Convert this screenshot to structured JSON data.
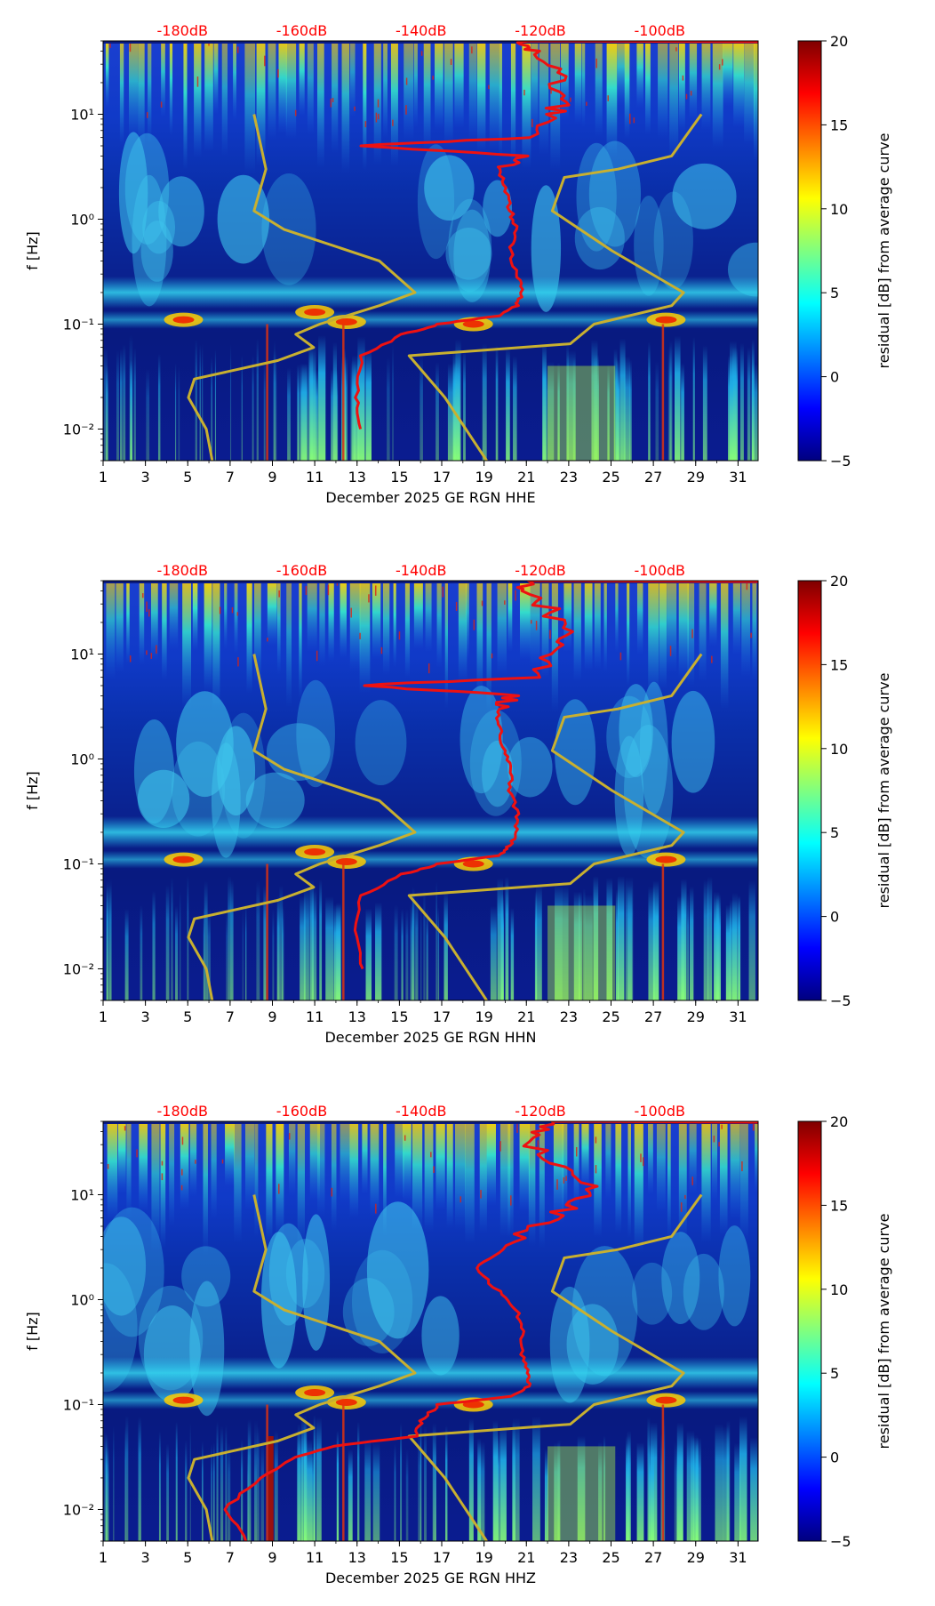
{
  "chart_data": [
    {
      "type": "heatmap",
      "channel": "HHE",
      "xlabel": "December 2025 GE RGN  HHE",
      "ylabel": "f [Hz]",
      "x_ticks": [
        "1",
        "3",
        "5",
        "7",
        "9",
        "11",
        "13",
        "15",
        "17",
        "19",
        "21",
        "23",
        "25",
        "27",
        "29",
        "31"
      ],
      "y_ticks": [
        "10⁻²",
        "10⁻¹",
        "10⁰",
        "10¹"
      ],
      "db_ticks": [
        "-180dB",
        "-160dB",
        "-140dB",
        "-120dB",
        "-100dB"
      ],
      "colorbar_label": "residual [dB] from average curve",
      "colorbar_ticks": [
        "20",
        "15",
        "10",
        "5",
        "0",
        "−5"
      ],
      "red_curve": [
        [
          5.0,
          -150
        ],
        [
          0.01,
          -150
        ],
        [
          0.02,
          -151
        ],
        [
          0.05,
          -150
        ],
        [
          0.08,
          -143
        ],
        [
          0.1,
          -137
        ],
        [
          0.12,
          -127
        ],
        [
          0.15,
          -124
        ],
        [
          0.2,
          -123
        ],
        [
          0.3,
          -124
        ],
        [
          0.5,
          -125
        ],
        [
          0.8,
          -124
        ],
        [
          1.2,
          -125
        ],
        [
          2.0,
          -126
        ],
        [
          3.0,
          -127
        ],
        [
          4.0,
          -124
        ],
        [
          6.0,
          -121
        ],
        [
          10.0,
          -118
        ],
        [
          15.0,
          -116
        ],
        [
          25.0,
          -118
        ],
        [
          40.0,
          -121
        ],
        [
          50.0,
          -122
        ]
      ],
      "yellow_curve_nlnm": [
        [
          0.005,
          -175
        ],
        [
          0.01,
          -176
        ],
        [
          0.02,
          -179
        ],
        [
          0.03,
          -178
        ],
        [
          0.045,
          -164
        ],
        [
          0.06,
          -158
        ],
        [
          0.08,
          -161
        ],
        [
          0.1,
          -157
        ],
        [
          0.15,
          -147
        ],
        [
          0.2,
          -141
        ],
        [
          0.4,
          -147
        ],
        [
          0.8,
          -163
        ],
        [
          1.2,
          -168
        ],
        [
          3.0,
          -166
        ],
        [
          10.0,
          -168
        ]
      ],
      "yellow_curve_nhnm": [
        [
          0.005,
          -129
        ],
        [
          0.02,
          -136
        ],
        [
          0.05,
          -142
        ],
        [
          0.065,
          -115
        ],
        [
          0.1,
          -111
        ],
        [
          0.15,
          -98
        ],
        [
          0.2,
          -96
        ],
        [
          0.5,
          -108
        ],
        [
          1.2,
          -118
        ],
        [
          2.5,
          -116
        ],
        [
          3.0,
          -107
        ],
        [
          4.0,
          -98
        ],
        [
          10.0,
          -93
        ]
      ]
    },
    {
      "type": "heatmap",
      "channel": "HHN",
      "xlabel": "December 2025 GE RGN  HHN",
      "ylabel": "f [Hz]",
      "x_ticks": [
        "1",
        "3",
        "5",
        "7",
        "9",
        "11",
        "13",
        "15",
        "17",
        "19",
        "21",
        "23",
        "25",
        "27",
        "29",
        "31"
      ],
      "y_ticks": [
        "10⁻²",
        "10⁻¹",
        "10⁰",
        "10¹"
      ],
      "db_ticks": [
        "-180dB",
        "-160dB",
        "-140dB",
        "-120dB",
        "-100dB"
      ],
      "colorbar_label": "residual [dB] from average curve",
      "colorbar_ticks": [
        "20",
        "15",
        "10",
        "5",
        "0",
        "−5"
      ],
      "red_curve": [
        [
          5.0,
          -150
        ],
        [
          0.01,
          -150
        ],
        [
          0.02,
          -151
        ],
        [
          0.05,
          -150
        ],
        [
          0.08,
          -143
        ],
        [
          0.1,
          -137
        ],
        [
          0.12,
          -127
        ],
        [
          0.15,
          -125
        ],
        [
          0.2,
          -124
        ],
        [
          0.3,
          -124
        ],
        [
          0.5,
          -125
        ],
        [
          0.8,
          -125
        ],
        [
          1.2,
          -126
        ],
        [
          2.0,
          -127
        ],
        [
          3.0,
          -127
        ],
        [
          4.0,
          -124
        ],
        [
          6.0,
          -121
        ],
        [
          10.0,
          -118
        ],
        [
          15.0,
          -116
        ],
        [
          25.0,
          -118
        ],
        [
          40.0,
          -122
        ],
        [
          50.0,
          -122
        ]
      ],
      "yellow_curve_nlnm": [
        [
          0.005,
          -175
        ],
        [
          0.01,
          -176
        ],
        [
          0.02,
          -179
        ],
        [
          0.03,
          -178
        ],
        [
          0.045,
          -164
        ],
        [
          0.06,
          -158
        ],
        [
          0.08,
          -161
        ],
        [
          0.1,
          -157
        ],
        [
          0.15,
          -147
        ],
        [
          0.2,
          -141
        ],
        [
          0.4,
          -147
        ],
        [
          0.8,
          -163
        ],
        [
          1.2,
          -168
        ],
        [
          3.0,
          -166
        ],
        [
          10.0,
          -168
        ]
      ],
      "yellow_curve_nhnm": [
        [
          0.005,
          -129
        ],
        [
          0.02,
          -136
        ],
        [
          0.05,
          -142
        ],
        [
          0.065,
          -115
        ],
        [
          0.1,
          -111
        ],
        [
          0.15,
          -98
        ],
        [
          0.2,
          -96
        ],
        [
          0.5,
          -108
        ],
        [
          1.2,
          -118
        ],
        [
          2.5,
          -116
        ],
        [
          3.0,
          -107
        ],
        [
          4.0,
          -98
        ],
        [
          10.0,
          -93
        ]
      ]
    },
    {
      "type": "heatmap",
      "channel": "HHZ",
      "xlabel": "December 2025 GE RGN  HHZ",
      "ylabel": "f [Hz]",
      "x_ticks": [
        "1",
        "3",
        "5",
        "7",
        "9",
        "11",
        "13",
        "15",
        "17",
        "19",
        "21",
        "23",
        "25",
        "27",
        "29",
        "31"
      ],
      "y_ticks": [
        "10⁻²",
        "10⁻¹",
        "10⁰",
        "10¹"
      ],
      "db_ticks": [
        "-180dB",
        "-160dB",
        "-140dB",
        "-120dB",
        "-100dB"
      ],
      "colorbar_label": "residual [dB] from average curve",
      "colorbar_ticks": [
        "20",
        "15",
        "10",
        "5",
        "0",
        "−5"
      ],
      "red_curve": [
        [
          0.005,
          -169
        ],
        [
          0.01,
          -173
        ],
        [
          0.02,
          -167
        ],
        [
          0.03,
          -162
        ],
        [
          0.04,
          -155
        ],
        [
          0.05,
          -141
        ],
        [
          0.07,
          -140
        ],
        [
          0.1,
          -137
        ],
        [
          0.12,
          -125
        ],
        [
          0.15,
          -122
        ],
        [
          0.2,
          -122
        ],
        [
          0.3,
          -123
        ],
        [
          0.5,
          -123
        ],
        [
          0.8,
          -124
        ],
        [
          1.2,
          -127
        ],
        [
          2.0,
          -131
        ],
        [
          3.0,
          -126
        ],
        [
          5.0,
          -121
        ],
        [
          8.0,
          -114
        ],
        [
          12.0,
          -111
        ],
        [
          20.0,
          -117
        ],
        [
          35.0,
          -123
        ],
        [
          50.0,
          -118
        ]
      ],
      "yellow_curve_nlnm": [
        [
          0.005,
          -175
        ],
        [
          0.01,
          -176
        ],
        [
          0.02,
          -179
        ],
        [
          0.03,
          -178
        ],
        [
          0.045,
          -164
        ],
        [
          0.06,
          -158
        ],
        [
          0.08,
          -161
        ],
        [
          0.1,
          -157
        ],
        [
          0.15,
          -147
        ],
        [
          0.2,
          -141
        ],
        [
          0.4,
          -147
        ],
        [
          0.8,
          -163
        ],
        [
          1.2,
          -168
        ],
        [
          3.0,
          -166
        ],
        [
          10.0,
          -168
        ]
      ],
      "yellow_curve_nhnm": [
        [
          0.005,
          -129
        ],
        [
          0.02,
          -136
        ],
        [
          0.05,
          -142
        ],
        [
          0.065,
          -115
        ],
        [
          0.1,
          -111
        ],
        [
          0.15,
          -98
        ],
        [
          0.2,
          -96
        ],
        [
          0.5,
          -108
        ],
        [
          1.2,
          -118
        ],
        [
          2.5,
          -116
        ],
        [
          3.0,
          -107
        ],
        [
          4.0,
          -98
        ],
        [
          10.0,
          -93
        ]
      ]
    }
  ],
  "colors": {
    "red_curve": "#ee1111",
    "yellow_curve": "#c8b030",
    "db_label": "#ff0000"
  }
}
